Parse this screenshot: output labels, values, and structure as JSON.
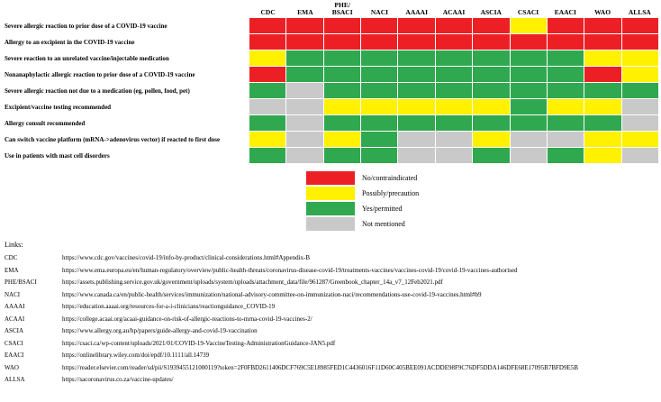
{
  "colors": {
    "red": "#ec2024",
    "yellow": "#fff100",
    "green": "#2fa84f",
    "gray": "#c9c9c9"
  },
  "legend": [
    {
      "color": "red",
      "label": "No/contraindicated"
    },
    {
      "color": "yellow",
      "label": "Possibly/precaution"
    },
    {
      "color": "green",
      "label": "Yes/permitted"
    },
    {
      "color": "gray",
      "label": "Not mentioned"
    }
  ],
  "chart_data": {
    "type": "heatmap",
    "columns": [
      "CDC",
      "EMA",
      "PHE/\nBSACI",
      "NACI",
      "AAAAI",
      "ACAAI",
      "ASCIA",
      "CSACI",
      "EAACI",
      "WAO",
      "ALLSA"
    ],
    "value_meanings": {
      "red": "No/contraindicated",
      "yellow": "Possibly/precaution",
      "green": "Yes/permitted",
      "gray": "Not mentioned"
    },
    "rows": [
      {
        "label": "Severe allergic reaction to prior dose of a COVID-19 vaccine",
        "values": [
          "red",
          "red",
          "red",
          "red",
          "red",
          "red",
          "red",
          "yellow",
          "red",
          "red",
          "red"
        ]
      },
      {
        "label": "Allergy to an excipient in the COVID-19 vaccine",
        "values": [
          "red",
          "red",
          "red",
          "red",
          "red",
          "red",
          "red",
          "red",
          "red",
          "red",
          "red"
        ]
      },
      {
        "label": "Severe reaction to an unrelated vaccine/injectable medication",
        "values": [
          "yellow",
          "green",
          "green",
          "green",
          "green",
          "green",
          "green",
          "green",
          "green",
          "yellow",
          "yellow"
        ]
      },
      {
        "label": "Nonanaphylactic allergic reaction to prior dose of a  COVID-19 vaccine",
        "values": [
          "red",
          "green",
          "green",
          "green",
          "green",
          "green",
          "green",
          "green",
          "green",
          "red",
          "yellow"
        ]
      },
      {
        "label": "Severe allergic reaction not due to a medication (eg, pollen, food, pet)",
        "values": [
          "green",
          "gray",
          "green",
          "green",
          "green",
          "green",
          "green",
          "green",
          "green",
          "green",
          "green"
        ]
      },
      {
        "label": "Excipient/vaccine testing recommended",
        "values": [
          "gray",
          "gray",
          "yellow",
          "yellow",
          "yellow",
          "yellow",
          "yellow",
          "green",
          "yellow",
          "yellow",
          "gray"
        ]
      },
      {
        "label": "Allergy consult recommended",
        "values": [
          "green",
          "gray",
          "green",
          "green",
          "green",
          "green",
          "green",
          "green",
          "green",
          "green",
          "gray"
        ]
      },
      {
        "label": "Can switch vaccine platform (mRNA->adenovirus vector) if reacted to first dose",
        "values": [
          "yellow",
          "gray",
          "yellow",
          "green",
          "gray",
          "gray",
          "yellow",
          "gray",
          "gray",
          "yellow",
          "yellow"
        ]
      },
      {
        "label": "Use in patients with mast cell disorders",
        "values": [
          "green",
          "gray",
          "green",
          "green",
          "gray",
          "gray",
          "green",
          "gray",
          "green",
          "yellow",
          "gray"
        ]
      }
    ]
  },
  "links": {
    "title": "Links:",
    "items": [
      {
        "org": "CDC",
        "url": "https://www.cdc.gov/vaccines/covid-19/info-by-product/clinical-considerations.html#Appendix-B"
      },
      {
        "org": "EMA",
        "url": "https://www.ema.europa.eu/en/human-regulatory/overview/public-health-threats/coronavirus-disease-covid-19/treatments-vaccines/vaccines-covid-19/covid-19-vaccines-authorised"
      },
      {
        "org": "PHE/BSACI",
        "url": "https://assets.publishing.service.gov.uk/government/uploads/system/uploads/attachment_data/file/961287/Greenbook_chapter_14a_v7_12Feb2021.pdf"
      },
      {
        "org": "NACI",
        "url": "https://www.canada.ca/en/public-health/services/immunization/national-advisory-committee-on-immunization-naci/recommendations-use-covid-19-vaccines.html#b9"
      },
      {
        "org": "AAAAI",
        "url": "https://education.aaaai.org/resources-for-a-i-clinicians/reactionguidance_COVID-19"
      },
      {
        "org": "ACAAI",
        "url": "https://college.acaai.org/acaai-guidance-on-risk-of-allergic-reactions-to-mrna-covid-19-vaccines-2/"
      },
      {
        "org": "ASCIA",
        "url": "https://www.allergy.org.au/hp/papers/guide-allergy-and-covid-19-vaccination"
      },
      {
        "org": "CSACI",
        "url": "https://csaci.ca/wp-content/uploads/2021/01/COVID-19-VaccineTesting-AdministrationGuidance-JAN5.pdf"
      },
      {
        "org": "EAACI",
        "url": "https://onlinelibrary.wiley.com/doi/epdf/10.1111/all.14739"
      },
      {
        "org": "WAO",
        "url": "https://reader.elsevier.com/reader/sd/pii/S1939455121000119?token=2F0FBD2611406DCF769C5E18985FED1C4436016F11D60C405BEE091ACDDE98F9C76DF5DDA146DFE68E17095B7BFD9E5B"
      },
      {
        "org": "ALLSA",
        "url": "https://sacoronavirus.co.za/vaccine-updates/"
      }
    ]
  }
}
